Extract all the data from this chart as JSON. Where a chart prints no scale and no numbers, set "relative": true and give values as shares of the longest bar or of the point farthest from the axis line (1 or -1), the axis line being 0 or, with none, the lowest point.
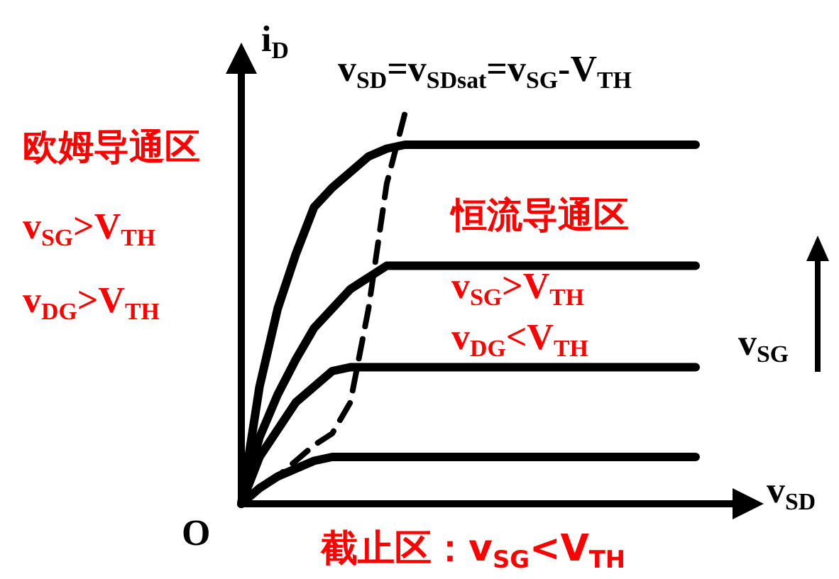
{
  "chart_data": {
    "type": "line",
    "relative": true,
    "xlabel": "v$_{SD}$",
    "ylabel": "i$_{D}$",
    "categories": [
      null,
      null,
      null,
      null,
      null,
      null,
      null,
      null,
      null,
      null,
      null,
      null,
      null,
      null,
      null,
      null,
      null,
      null,
      null,
      null,
      null,
      null,
      null,
      null,
      null,
      null
    ],
    "series": [
      {
        "color": "#000000",
        "values": [
          0,
          0.3,
          0.5,
          0.64,
          0.76,
          0.81,
          0.85,
          0.89,
          0.91,
          0.92,
          0.92,
          0.92,
          0.92,
          0.92,
          0.92,
          0.92,
          0.92,
          0.92,
          0.92,
          0.92,
          0.92,
          0.92,
          0.92,
          0.92,
          0.92,
          0.92
        ]
      },
      {
        "color": "#000000",
        "values": [
          0,
          0.17,
          0.28,
          0.37,
          0.45,
          0.5,
          0.55,
          0.58,
          0.61,
          0.61,
          0.61,
          0.61,
          0.61,
          0.61,
          0.61,
          0.61,
          0.61,
          0.61,
          0.61,
          0.61,
          0.61,
          0.61,
          0.61,
          0.61,
          0.61,
          0.61
        ]
      },
      {
        "color": "#000000",
        "values": [
          0,
          0.12,
          0.19,
          0.26,
          0.3,
          0.34,
          0.35,
          0.35,
          0.35,
          0.35,
          0.35,
          0.35,
          0.35,
          0.35,
          0.35,
          0.35,
          0.35,
          0.35,
          0.35,
          0.35,
          0.35,
          0.35,
          0.35,
          0.35,
          0.35,
          0.35
        ]
      },
      {
        "color": "#000000",
        "values": [
          0,
          0.04,
          0.07,
          0.09,
          0.11,
          0.12,
          0.12,
          0.12,
          0.12,
          0.12,
          0.12,
          0.12,
          0.12,
          0.12,
          0.12,
          0.12,
          0.12,
          0.12,
          0.12,
          0.12,
          0.12,
          0.12,
          0.12,
          0.12,
          0.12,
          0.12
        ]
      },
      {
        "color": "#000000",
        "line_style": "dashed",
        "values": [
          0,
          0.04,
          0.07,
          0.11,
          0.15,
          0.18,
          0.26,
          0.5,
          0.82,
          1,
          null,
          null,
          null,
          null,
          null,
          null,
          null,
          null,
          null,
          null,
          null,
          null,
          null,
          null,
          null,
          null
        ]
      }
    ],
    "annotations": [
      "v$_{SD}$=v$_{SDsat}$=v$_{SG}$-V$_{TH}$",
      "欧姆导通区",
      "v$_{SG}$>V$_{TH}$",
      "v$_{DG}$>V$_{TH}$",
      "恒流导通区",
      "v$_{SG}$>V$_{TH}$",
      "v$_{DG}$<V$_{TH}$",
      "截止区：v$_{SG}$<V$_{TH}$",
      "O",
      "v$_{SG}$"
    ]
  }
}
